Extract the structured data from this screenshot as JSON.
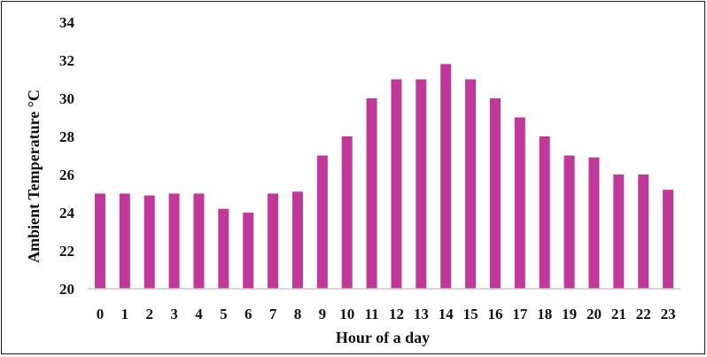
{
  "chart_data": {
    "type": "bar",
    "xlabel": "Hour of a day",
    "ylabel": "Ambient Temperature °C",
    "ylim": [
      20,
      34
    ],
    "yticks": [
      20,
      22,
      24,
      26,
      28,
      30,
      32,
      34
    ],
    "grid": false,
    "bar_color": "#c0399a",
    "categories": [
      "0",
      "1",
      "2",
      "3",
      "4",
      "5",
      "6",
      "7",
      "8",
      "9",
      "10",
      "11",
      "12",
      "13",
      "14",
      "15",
      "16",
      "17",
      "18",
      "19",
      "20",
      "21",
      "22",
      "23"
    ],
    "values": [
      25,
      25,
      24.9,
      25,
      25,
      24.2,
      24,
      25,
      25.1,
      27,
      28,
      30,
      31,
      31,
      31.8,
      31,
      30,
      29,
      28,
      27,
      26.9,
      26,
      26,
      25.2
    ]
  }
}
